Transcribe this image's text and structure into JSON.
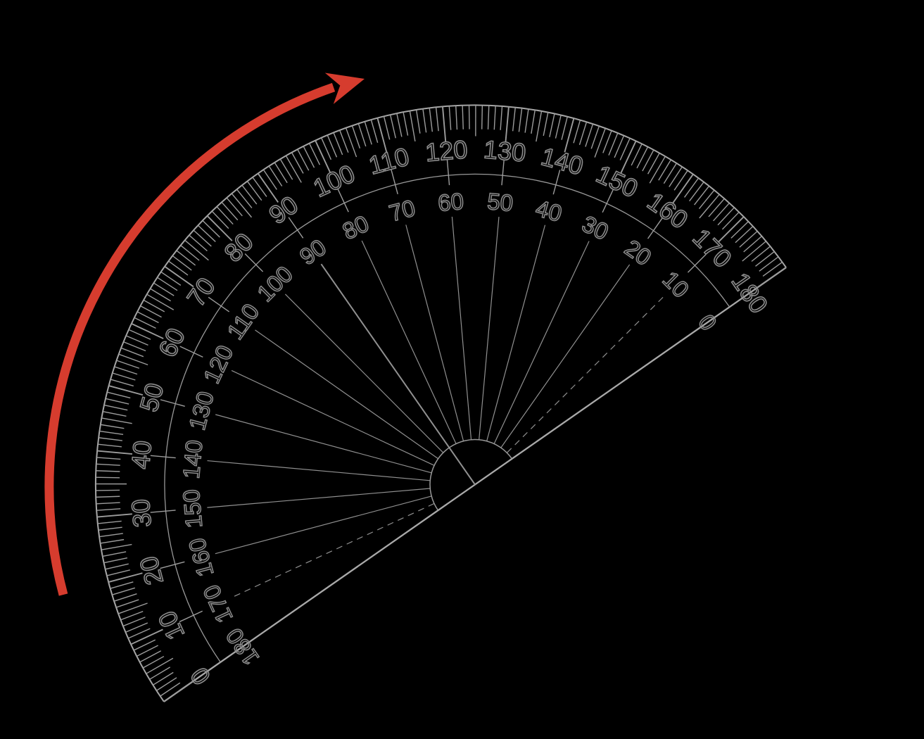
{
  "background_color": "#000000",
  "protractor": {
    "type": "semicircular-protractor",
    "rotation_deg_ccw": 34.9,
    "minor_tick_step_deg": 1,
    "medium_tick_step_deg": 5,
    "label_step_deg": 10,
    "outer_scale": {
      "zero_position": "bottom-left",
      "direction": "clockwise",
      "labels": [
        "0",
        "10",
        "20",
        "30",
        "40",
        "50",
        "60",
        "70",
        "80",
        "90",
        "100",
        "110",
        "120",
        "130",
        "140",
        "150",
        "160",
        "170",
        "180"
      ]
    },
    "inner_scale": {
      "zero_position": "right",
      "direction": "counterclockwise",
      "labels": [
        "0",
        "10",
        "20",
        "30",
        "40",
        "50",
        "60",
        "70",
        "80",
        "90",
        "100",
        "110",
        "120",
        "130",
        "140",
        "150",
        "160",
        "170",
        "180"
      ]
    },
    "dashed_radial_degrees_inner": [
      10,
      170
    ],
    "colors": {
      "outline": "#a6a6a6",
      "ticks": "#9c9c9c",
      "numbers": "#8d8d8d",
      "radial_lines": "#909090",
      "arcs": "#989898",
      "baseline": "#a9a9a9"
    }
  },
  "rotation_arrow": {
    "color": "#d63c2e",
    "sweep": "counterclockwise",
    "from": "lower-left",
    "to": "upper-middle"
  }
}
